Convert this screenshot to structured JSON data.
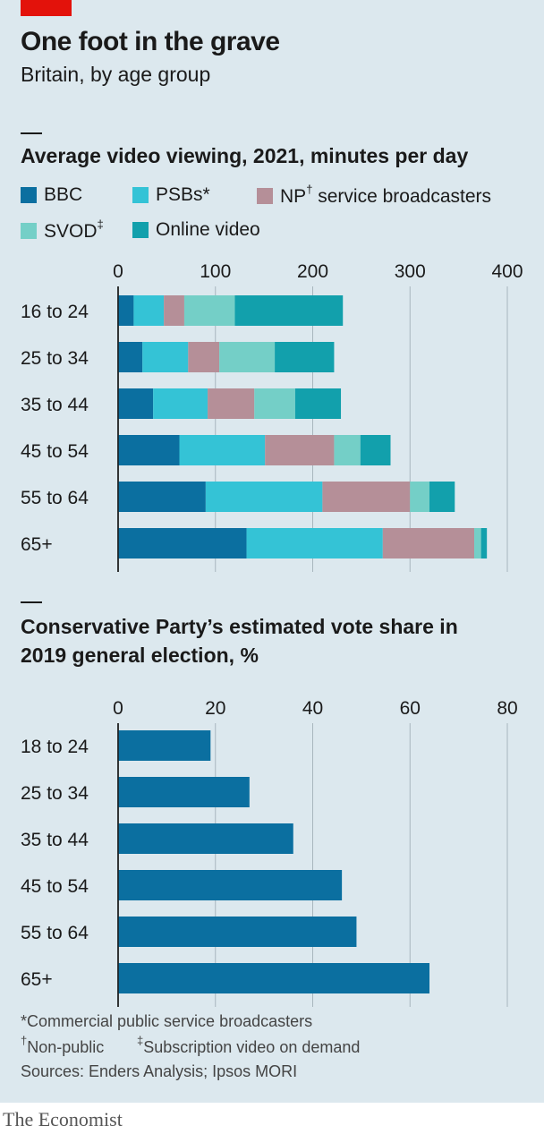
{
  "header": {
    "title": "One foot in the grave",
    "subtitle": "Britain, by age group"
  },
  "colors": {
    "bbc": "#0b6fa0",
    "psbs": "#34c3d6",
    "np": "#b58f98",
    "svod": "#74cfc7",
    "online": "#12a0ac",
    "vote": "#0b6fa0",
    "grid": "#a8b6bd"
  },
  "legend": {
    "bbc": "BBC",
    "psbs": "PSBs*",
    "np_pre": "NP",
    "np_mark": "†",
    "np_post": " service broadcasters",
    "svod_pre": "SVOD",
    "svod_mark": "‡",
    "online": "Online video"
  },
  "chart_data": [
    {
      "type": "bar",
      "stacked": true,
      "orientation": "horizontal",
      "title": "Average video viewing, 2021, minutes per day",
      "categories": [
        "16 to 24",
        "25 to 34",
        "35 to 44",
        "45 to 54",
        "55 to 64",
        "65+"
      ],
      "xlim": [
        0,
        400
      ],
      "xticks": [
        "0",
        "100",
        "200",
        "300",
        "400"
      ],
      "grid": true,
      "legend_position": "top",
      "series": [
        {
          "name": "BBC",
          "color_key": "bbc",
          "values": [
            16,
            25,
            36,
            63,
            90,
            132
          ]
        },
        {
          "name": "PSBs*",
          "color_key": "psbs",
          "values": [
            31,
            47,
            56,
            88,
            120,
            140
          ]
        },
        {
          "name": "NP† service broadcasters",
          "color_key": "np",
          "values": [
            21,
            32,
            48,
            71,
            90,
            94
          ]
        },
        {
          "name": "SVOD‡",
          "color_key": "svod",
          "values": [
            52,
            57,
            42,
            27,
            20,
            7
          ]
        },
        {
          "name": "Online video",
          "color_key": "online",
          "values": [
            111,
            61,
            47,
            31,
            26,
            6
          ]
        }
      ]
    },
    {
      "type": "bar",
      "orientation": "horizontal",
      "title": "Conservative Party’s estimated vote share in 2019 general election, %",
      "categories": [
        "18 to 24",
        "25 to 34",
        "35 to 44",
        "45 to 54",
        "55 to 64",
        "65+"
      ],
      "values": [
        19,
        27,
        36,
        46,
        49,
        64
      ],
      "xlim": [
        0,
        80
      ],
      "xticks": [
        "0",
        "20",
        "40",
        "60",
        "80"
      ],
      "grid": true
    }
  ],
  "notes": {
    "line1": "*Commercial public service broadcasters",
    "line2_mark": "†",
    "line2": "Non-public",
    "line2b_mark": "‡",
    "line2b": "Subscription video on demand",
    "sources": "Sources: Enders Analysis; Ipsos MORI"
  },
  "brand": "The Economist"
}
